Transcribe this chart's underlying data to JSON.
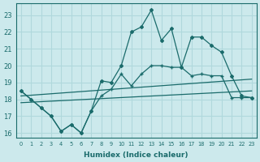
{
  "title": "",
  "xlabel": "Humidex (Indice chaleur)",
  "ylabel": "",
  "xlim": [
    -0.5,
    23.5
  ],
  "ylim": [
    15.7,
    23.7
  ],
  "yticks": [
    16,
    17,
    18,
    19,
    20,
    21,
    22,
    23
  ],
  "xticks": [
    0,
    1,
    2,
    3,
    4,
    5,
    6,
    7,
    8,
    9,
    10,
    11,
    12,
    13,
    14,
    15,
    16,
    17,
    18,
    19,
    20,
    21,
    22,
    23
  ],
  "bg_color": "#cce9ec",
  "grid_color": "#b0d8dc",
  "line_color": "#1a6b6b",
  "line1_x": [
    0,
    1,
    2,
    3,
    4,
    5,
    6,
    7,
    8,
    9,
    10,
    11,
    12,
    13,
    14,
    15,
    16,
    17,
    18,
    19,
    20,
    21,
    22,
    23
  ],
  "line1_y": [
    18.5,
    18.0,
    17.5,
    17.0,
    16.1,
    16.5,
    16.0,
    17.3,
    19.1,
    19.0,
    20.0,
    22.0,
    22.3,
    23.3,
    21.5,
    22.2,
    19.9,
    21.7,
    21.7,
    21.2,
    20.8,
    19.4,
    18.2,
    18.1
  ],
  "line2_x": [
    0,
    1,
    2,
    3,
    4,
    5,
    6,
    7,
    8,
    9,
    10,
    11,
    12,
    13,
    14,
    15,
    16,
    17,
    18,
    19,
    20,
    21,
    22,
    23
  ],
  "line2_y": [
    18.5,
    18.0,
    17.5,
    17.0,
    16.1,
    16.5,
    16.0,
    17.3,
    18.2,
    18.6,
    19.5,
    18.8,
    19.5,
    20.0,
    20.0,
    19.9,
    19.9,
    19.4,
    19.5,
    19.4,
    19.4,
    18.1,
    18.1,
    18.1
  ],
  "line3_x": [
    0,
    23
  ],
  "line3_y": [
    18.2,
    19.2
  ],
  "line4_x": [
    0,
    23
  ],
  "line4_y": [
    17.8,
    18.5
  ]
}
